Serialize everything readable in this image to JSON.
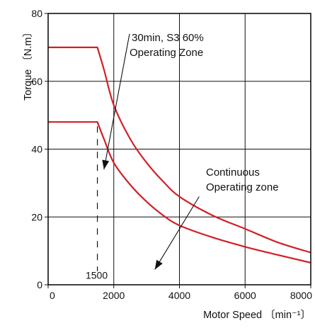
{
  "chart_data": {
    "type": "line",
    "xlabel": "Motor Speed 〔min⁻¹〕",
    "ylabel": "Torque 〔N.m〕",
    "xlim": [
      0,
      8000
    ],
    "ylim": [
      0,
      80
    ],
    "x_ticks": [
      0,
      2000,
      4000,
      6000,
      8000
    ],
    "y_ticks": [
      0,
      20,
      40,
      60,
      80
    ],
    "x_tick_labels": [
      "0",
      "2000",
      "4000",
      "6000",
      "8000"
    ],
    "y_tick_labels": [
      "0",
      "20",
      "40",
      "60",
      "80"
    ],
    "grid": true,
    "series": [
      {
        "color": "#d21f26",
        "points": [
          [
            0,
            70
          ],
          [
            1500,
            70
          ],
          [
            1700,
            63.5
          ],
          [
            2000,
            53
          ],
          [
            2500,
            43
          ],
          [
            3000,
            36
          ],
          [
            3500,
            30.5
          ],
          [
            4000,
            26
          ],
          [
            5000,
            20.5
          ],
          [
            6000,
            16.5
          ],
          [
            7000,
            12.5
          ],
          [
            8000,
            9.5
          ]
        ]
      },
      {
        "color": "#d21f26",
        "points": [
          [
            0,
            48
          ],
          [
            1500,
            48
          ],
          [
            1700,
            43
          ],
          [
            2000,
            36
          ],
          [
            2500,
            29.5
          ],
          [
            3000,
            24.5
          ],
          [
            3500,
            20.5
          ],
          [
            4000,
            17.5
          ],
          [
            5000,
            14
          ],
          [
            6000,
            11.2
          ],
          [
            7000,
            8.8
          ],
          [
            8000,
            6.5
          ]
        ]
      }
    ],
    "base_speed_marker": {
      "x": 1500,
      "label": "1500"
    },
    "annotations": [
      {
        "id": "s3",
        "lines": [
          "30min, S3 60%",
          "Operating Zone"
        ],
        "arrow_from": [
          2480,
          74
        ],
        "arrow_to": [
          1700,
          34
        ]
      },
      {
        "id": "continuous",
        "lines": [
          "Continuous",
          "Operating zone"
        ],
        "arrow_from": [
          4600,
          26
        ],
        "arrow_to": [
          3250,
          4.5
        ]
      }
    ]
  }
}
